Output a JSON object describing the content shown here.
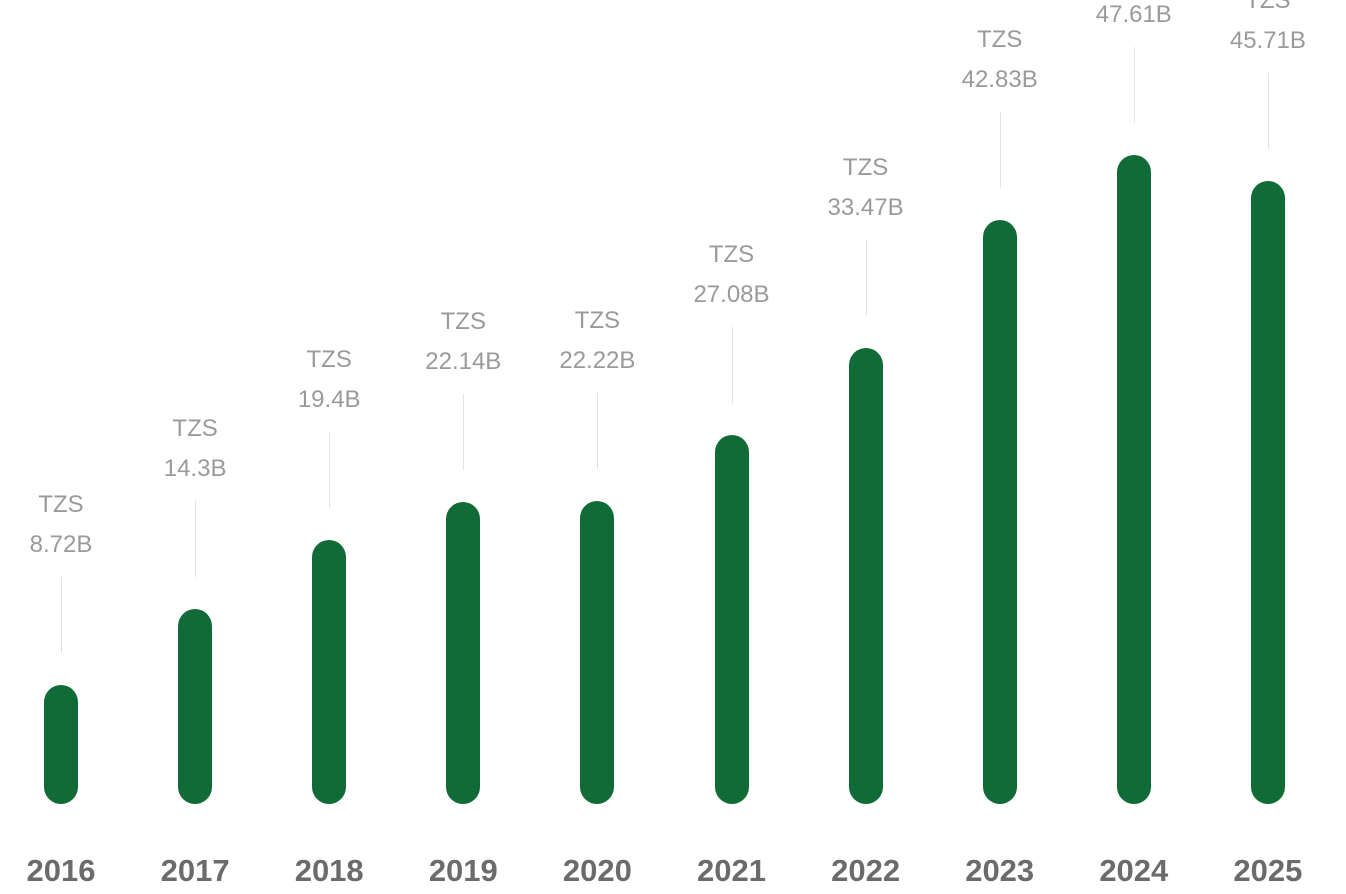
{
  "chart_data": {
    "type": "bar",
    "categories": [
      "2016",
      "2017",
      "2018",
      "2019",
      "2020",
      "2021",
      "2022",
      "2023",
      "2024",
      "2025"
    ],
    "values": [
      8.72,
      14.3,
      19.4,
      22.14,
      22.22,
      27.08,
      33.47,
      42.83,
      47.61,
      45.71
    ],
    "value_prefix": "TZS",
    "data_labels": [
      "8.72B",
      "14.3B",
      "19.4B",
      "22.14B",
      "22.22B",
      "27.08B",
      "33.47B",
      "42.83B",
      "47.61B",
      "45.71B"
    ],
    "title": "",
    "xlabel": "",
    "ylabel": "",
    "ylim": [
      0,
      48
    ],
    "grid": false,
    "legend": "none",
    "bar_color": "#116b37"
  }
}
